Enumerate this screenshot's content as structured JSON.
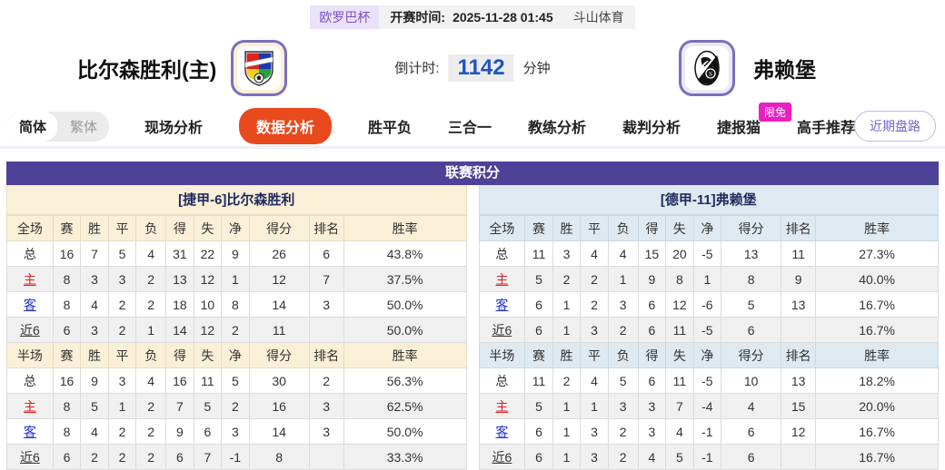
{
  "top_bar": {
    "league_badge": "欧罗巴杯",
    "kickoff_label": "开赛时间:",
    "kickoff_time": "2025-11-28 01:45",
    "source": "斗山体育"
  },
  "match_header": {
    "home_team": "比尔森胜利(主)",
    "away_team": "弗赖堡",
    "countdown_label": "倒计时:",
    "countdown_value": "1142",
    "countdown_unit": "分钟"
  },
  "nav": {
    "lang": [
      "简体",
      "繁体"
    ],
    "tabs": [
      {
        "label": "现场分析",
        "active": false
      },
      {
        "label": "数据分析",
        "active": true
      },
      {
        "label": "胜平负",
        "active": false
      },
      {
        "label": "三合一",
        "active": false
      },
      {
        "label": "教练分析",
        "active": false
      },
      {
        "label": "裁判分析",
        "active": false
      },
      {
        "label": "捷报猫",
        "active": false,
        "badge": "限免"
      },
      {
        "label": "高手推荐",
        "active": false
      }
    ],
    "right_button": "近期盘路"
  },
  "league_table": {
    "title": "联赛积分",
    "columns_full": [
      "全场",
      "赛",
      "胜",
      "平",
      "负",
      "得",
      "失",
      "净",
      "得分",
      "排名",
      "胜率"
    ],
    "columns_half": [
      "半场",
      "赛",
      "胜",
      "平",
      "负",
      "得",
      "失",
      "净",
      "得分",
      "排名",
      "胜率"
    ],
    "left": {
      "subtitle": "[捷甲-6]比尔森胜利",
      "full_rows": [
        {
          "label": "总",
          "type": "total",
          "cells": [
            "16",
            "7",
            "5",
            "4",
            "31",
            "22",
            "9",
            "26",
            "6",
            "43.8%"
          ]
        },
        {
          "label": "主",
          "type": "home",
          "cells": [
            "8",
            "3",
            "3",
            "2",
            "13",
            "12",
            "1",
            "12",
            "7",
            "37.5%"
          ]
        },
        {
          "label": "客",
          "type": "away",
          "cells": [
            "8",
            "4",
            "2",
            "2",
            "18",
            "10",
            "8",
            "14",
            "3",
            "50.0%"
          ]
        },
        {
          "label": "近6",
          "type": "recent",
          "cells": [
            "6",
            "3",
            "2",
            "1",
            "14",
            "12",
            "2",
            "11",
            "",
            "50.0%"
          ]
        }
      ],
      "half_rows": [
        {
          "label": "总",
          "type": "total",
          "cells": [
            "16",
            "9",
            "3",
            "4",
            "16",
            "11",
            "5",
            "30",
            "2",
            "56.3%"
          ]
        },
        {
          "label": "主",
          "type": "home",
          "cells": [
            "8",
            "5",
            "1",
            "2",
            "7",
            "5",
            "2",
            "16",
            "3",
            "62.5%"
          ]
        },
        {
          "label": "客",
          "type": "away",
          "cells": [
            "8",
            "4",
            "2",
            "2",
            "9",
            "6",
            "3",
            "14",
            "3",
            "50.0%"
          ]
        },
        {
          "label": "近6",
          "type": "recent",
          "cells": [
            "6",
            "2",
            "2",
            "2",
            "6",
            "7",
            "-1",
            "8",
            "",
            "33.3%"
          ]
        }
      ]
    },
    "right": {
      "subtitle": "[德甲-11]弗赖堡",
      "full_rows": [
        {
          "label": "总",
          "type": "total",
          "cells": [
            "11",
            "3",
            "4",
            "4",
            "15",
            "20",
            "-5",
            "13",
            "11",
            "27.3%"
          ]
        },
        {
          "label": "主",
          "type": "home",
          "cells": [
            "5",
            "2",
            "2",
            "1",
            "9",
            "8",
            "1",
            "8",
            "9",
            "40.0%"
          ]
        },
        {
          "label": "客",
          "type": "away",
          "cells": [
            "6",
            "1",
            "2",
            "3",
            "6",
            "12",
            "-6",
            "5",
            "13",
            "16.7%"
          ]
        },
        {
          "label": "近6",
          "type": "recent",
          "cells": [
            "6",
            "1",
            "3",
            "2",
            "6",
            "11",
            "-5",
            "6",
            "",
            "16.7%"
          ]
        }
      ],
      "half_rows": [
        {
          "label": "总",
          "type": "total",
          "cells": [
            "11",
            "2",
            "4",
            "5",
            "6",
            "11",
            "-5",
            "10",
            "13",
            "18.2%"
          ]
        },
        {
          "label": "主",
          "type": "home",
          "cells": [
            "5",
            "1",
            "1",
            "3",
            "3",
            "7",
            "-4",
            "4",
            "15",
            "20.0%"
          ]
        },
        {
          "label": "客",
          "type": "away",
          "cells": [
            "6",
            "1",
            "3",
            "2",
            "3",
            "4",
            "-1",
            "6",
            "12",
            "16.7%"
          ]
        },
        {
          "label": "近6",
          "type": "recent",
          "cells": [
            "6",
            "1",
            "3",
            "2",
            "4",
            "5",
            "-1",
            "6",
            "",
            "16.7%"
          ]
        }
      ]
    }
  },
  "colors": {
    "section_header": "#4e4198",
    "home_panel": "#faefd7",
    "away_panel": "#dfe9f1",
    "active_tab": "#e8491d",
    "badge_pink": "#ea1fc0",
    "countdown_blue": "#1d55c0",
    "home_row_label": "#e02222",
    "away_row_label": "#2333cc"
  }
}
